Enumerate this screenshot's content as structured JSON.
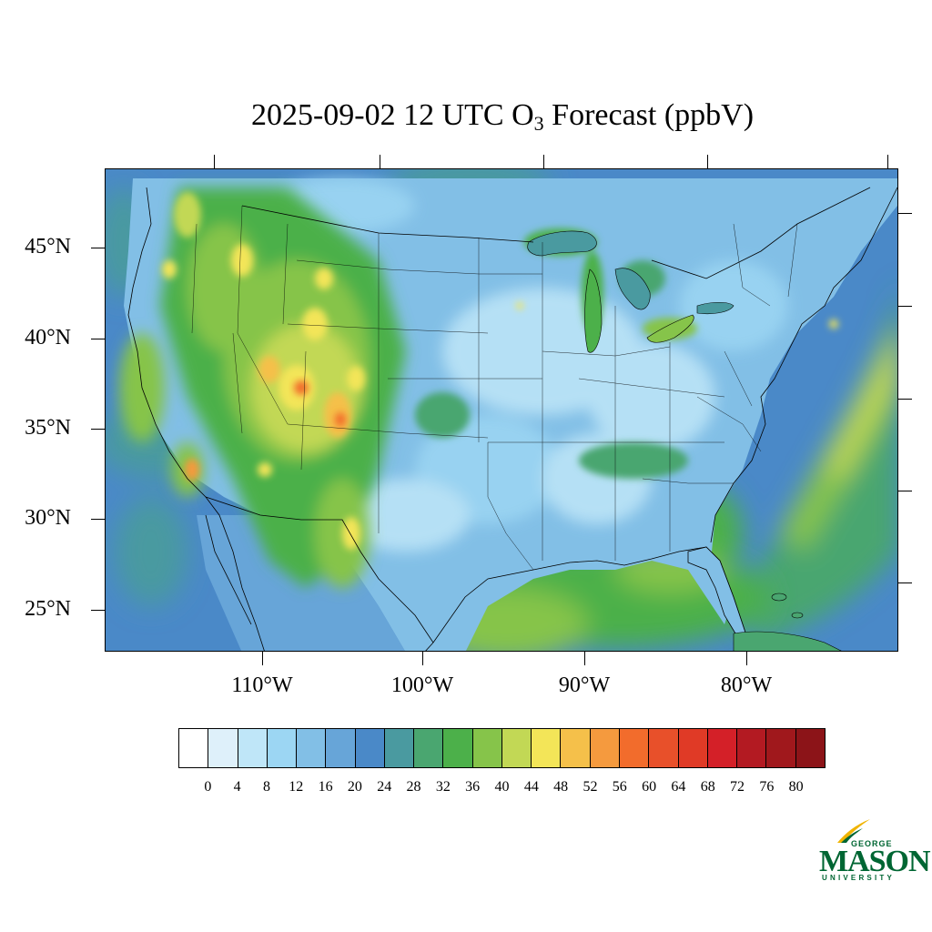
{
  "title": {
    "prefix": "2025-09-02 12 UTC O",
    "subscript": "3",
    "suffix": " Forecast (ppbV)"
  },
  "map": {
    "lat_labels": [
      "45°N",
      "40°N",
      "35°N",
      "30°N",
      "25°N"
    ],
    "lon_labels": [
      "110°W",
      "100°W",
      "90°W",
      "80°W"
    ],
    "lat_values": [
      45,
      40,
      35,
      30,
      25
    ],
    "lon_values": [
      -110,
      -100,
      -90,
      -80
    ]
  },
  "colorbar": {
    "labels": [
      "0",
      "4",
      "8",
      "12",
      "16",
      "20",
      "24",
      "28",
      "32",
      "36",
      "40",
      "44",
      "48",
      "52",
      "56",
      "60",
      "64",
      "68",
      "72",
      "76",
      "80"
    ],
    "colors": [
      "#ffffff",
      "#def0fa",
      "#bfe6f8",
      "#9cd6f3",
      "#82bfe6",
      "#67a5d8",
      "#4a89c8",
      "#4a9aa0",
      "#4aa670",
      "#4cb04a",
      "#86c44a",
      "#c2d855",
      "#f3e558",
      "#f5c04a",
      "#f59a3e",
      "#f26c2c",
      "#e8502a",
      "#e03a26",
      "#d42028",
      "#b31a22",
      "#a0181c",
      "#8c1418"
    ]
  },
  "logo": {
    "george": "GEORGE",
    "mason": "MASON",
    "university": "UNIVERSITY",
    "color": "#006633",
    "accent": "#f0b400"
  }
}
